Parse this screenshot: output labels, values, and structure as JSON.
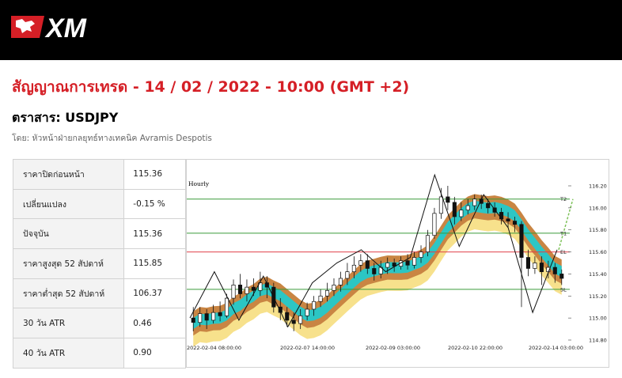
{
  "brand": {
    "name": "XM"
  },
  "report": {
    "title": "สัญญาณการเทรด - 14 / 02 / 2022 - 10:00 (GMT +2)",
    "instrument": "ตราสาร: USDJPY",
    "author": "โดย: หัวหน้าฝ่ายกลยุทธ์ทางเทคนิค Avramis Despotis"
  },
  "stats": [
    {
      "label": "ราคาปิดก่อนหน้า",
      "value": "115.36"
    },
    {
      "label": "เปลี่ยนแปลง",
      "value": "-0.15 %"
    },
    {
      "label": "ปัจจุบัน",
      "value": "115.36"
    },
    {
      "label": "ราคาสูงสุด 52 สัปดาห์",
      "value": "115.85"
    },
    {
      "label": "ราคาต่ำสุด 52 สัปดาห์",
      "value": "106.37"
    },
    {
      "label": "30 วัน ATR",
      "value": "0.46"
    },
    {
      "label": "40 วัน ATR",
      "value": "0.90"
    }
  ],
  "chart_data": {
    "type": "candlestick",
    "timeframe": "Hourly",
    "y_ticks": [
      "116.20",
      "116.00",
      "115.80",
      "115.60",
      "115.40",
      "115.20",
      "115.00",
      "114.80"
    ],
    "ylim": [
      114.8,
      116.2
    ],
    "x_ticks": [
      "2022-02-04 08:00:00",
      "2022-02-07 14:00:00",
      "2022-02-09 03:00:00",
      "2022-02-10 22:00:00",
      "2022-02-14 03:00:00"
    ],
    "levels": [
      {
        "label": "T2",
        "value": 116.08,
        "color": "#3a9b3a"
      },
      {
        "label": "T1",
        "value": 115.77,
        "color": "#3a9b3a"
      },
      {
        "label": "EL",
        "value": 115.6,
        "color": "#e0404a"
      },
      {
        "label": "SL",
        "value": 115.26,
        "color": "#3a9b3a"
      }
    ],
    "colors": {
      "band_outer": "#c98543",
      "band_inner": "#2cc6c4",
      "band_light": "#f7e18c",
      "zigzag": "#111111",
      "projection": "#7ec25a"
    },
    "zigzag": [
      115.0,
      115.42,
      114.98,
      115.38,
      114.92,
      115.32,
      115.5,
      115.62,
      115.42,
      115.55,
      116.3,
      115.65,
      116.12,
      115.82,
      115.05,
      115.62
    ],
    "candles": [
      [
        115.0,
        114.96,
        115.1,
        114.88
      ],
      [
        114.96,
        115.04,
        115.1,
        114.92
      ],
      [
        115.04,
        114.98,
        115.08,
        114.9
      ],
      [
        114.98,
        115.05,
        115.12,
        114.95
      ],
      [
        115.05,
        115.02,
        115.15,
        114.97
      ],
      [
        115.02,
        115.18,
        115.22,
        115.0
      ],
      [
        115.18,
        115.3,
        115.35,
        115.12
      ],
      [
        115.3,
        115.22,
        115.4,
        115.18
      ],
      [
        115.22,
        115.28,
        115.35,
        115.15
      ],
      [
        115.28,
        115.25,
        115.36,
        115.2
      ],
      [
        115.25,
        115.32,
        115.42,
        115.2
      ],
      [
        115.32,
        115.28,
        115.38,
        115.18
      ],
      [
        115.28,
        115.1,
        115.32,
        115.05
      ],
      [
        115.1,
        115.05,
        115.18,
        114.98
      ],
      [
        115.05,
        114.98,
        115.1,
        114.92
      ],
      [
        114.98,
        114.95,
        115.05,
        114.88
      ],
      [
        114.95,
        115.02,
        115.08,
        114.9
      ],
      [
        115.02,
        115.08,
        115.14,
        114.98
      ],
      [
        115.08,
        115.15,
        115.2,
        115.02
      ],
      [
        115.15,
        115.2,
        115.26,
        115.1
      ],
      [
        115.2,
        115.25,
        115.32,
        115.15
      ],
      [
        115.25,
        115.3,
        115.36,
        115.2
      ],
      [
        115.3,
        115.36,
        115.42,
        115.24
      ],
      [
        115.36,
        115.42,
        115.5,
        115.3
      ],
      [
        115.42,
        115.48,
        115.56,
        115.36
      ],
      [
        115.48,
        115.52,
        115.58,
        115.42
      ],
      [
        115.52,
        115.45,
        115.58,
        115.4
      ],
      [
        115.45,
        115.4,
        115.5,
        115.34
      ],
      [
        115.4,
        115.46,
        115.52,
        115.36
      ],
      [
        115.46,
        115.5,
        115.55,
        115.4
      ],
      [
        115.5,
        115.47,
        115.54,
        115.42
      ],
      [
        115.47,
        115.52,
        115.56,
        115.44
      ],
      [
        115.52,
        115.48,
        115.58,
        115.44
      ],
      [
        115.48,
        115.55,
        115.6,
        115.45
      ],
      [
        115.55,
        115.6,
        115.66,
        115.5
      ],
      [
        115.6,
        115.75,
        115.8,
        115.56
      ],
      [
        115.75,
        115.95,
        116.0,
        115.72
      ],
      [
        115.95,
        116.1,
        116.18,
        115.9
      ],
      [
        116.1,
        116.05,
        116.2,
        115.98
      ],
      [
        116.05,
        115.92,
        116.1,
        115.85
      ],
      [
        115.92,
        115.98,
        116.05,
        115.88
      ],
      [
        115.98,
        116.02,
        116.08,
        115.94
      ],
      [
        116.02,
        116.08,
        116.12,
        115.98
      ],
      [
        116.08,
        116.04,
        116.12,
        115.99
      ],
      [
        116.04,
        116.0,
        116.08,
        115.95
      ],
      [
        116.0,
        115.96,
        116.05,
        115.92
      ],
      [
        115.96,
        115.9,
        116.0,
        115.85
      ],
      [
        115.9,
        115.88,
        115.96,
        115.82
      ],
      [
        115.88,
        115.85,
        115.92,
        115.78
      ],
      [
        115.85,
        115.55,
        115.88,
        115.1
      ],
      [
        115.55,
        115.45,
        115.62,
        115.38
      ],
      [
        115.45,
        115.5,
        115.56,
        115.4
      ],
      [
        115.5,
        115.42,
        115.56,
        115.3
      ],
      [
        115.42,
        115.46,
        115.52,
        115.36
      ],
      [
        115.46,
        115.4,
        115.5,
        115.32
      ],
      [
        115.4,
        115.36,
        115.44,
        115.3
      ]
    ]
  }
}
